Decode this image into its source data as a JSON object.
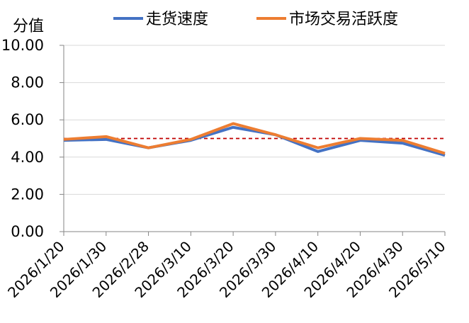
{
  "chart_data": {
    "type": "line",
    "ylabel": "分值",
    "ylim": [
      0,
      10
    ],
    "y_ticks": [
      "0.00",
      "2.00",
      "4.00",
      "6.00",
      "8.00",
      "10.00"
    ],
    "categories": [
      "2026/1/20",
      "2026/1/30",
      "2026/2/28",
      "2026/3/10",
      "2026/3/20",
      "2026/3/30",
      "2026/4/10",
      "2026/4/20",
      "2026/4/30",
      "2026/5/10"
    ],
    "series": [
      {
        "name": "走货速度",
        "color": "#4472c4",
        "values": [
          4.9,
          4.95,
          4.5,
          4.9,
          5.6,
          5.2,
          4.3,
          4.9,
          4.75,
          4.1
        ]
      },
      {
        "name": "市场交易活跃度",
        "color": "#ed7d31",
        "values": [
          4.95,
          5.1,
          4.5,
          4.95,
          5.8,
          5.2,
          4.5,
          5.0,
          4.9,
          4.2
        ]
      }
    ],
    "reference_line": {
      "value": 5.0,
      "color": "#c00000",
      "style": "dashed"
    },
    "grid": "horizontal",
    "legend": "top"
  }
}
